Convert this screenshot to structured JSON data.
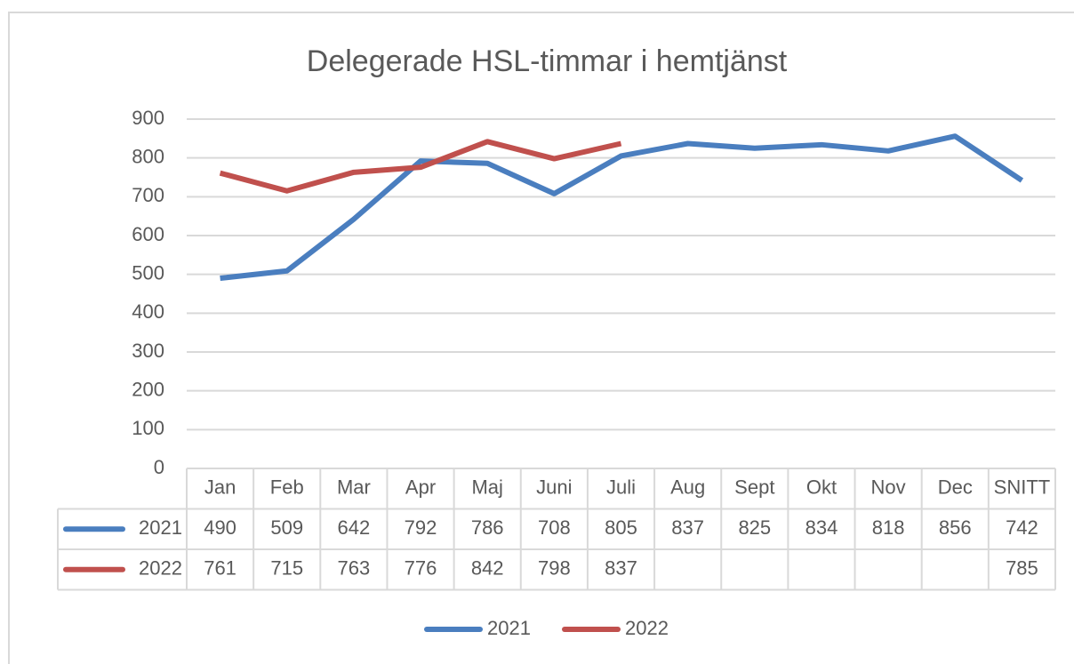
{
  "chart_data": {
    "type": "line",
    "title": "Delegerade HSL-timmar i hemtjänst",
    "categories": [
      "Jan",
      "Feb",
      "Mar",
      "Apr",
      "Maj",
      "Juni",
      "Juli",
      "Aug",
      "Sept",
      "Okt",
      "Nov",
      "Dec",
      "SNITT"
    ],
    "series": [
      {
        "name": "2021",
        "color": "#4a7ebf",
        "values": [
          490,
          509,
          642,
          792,
          786,
          708,
          805,
          837,
          825,
          834,
          818,
          856,
          742
        ]
      },
      {
        "name": "2022",
        "color": "#c0504d",
        "values": [
          761,
          715,
          763,
          776,
          842,
          798,
          837,
          null,
          null,
          null,
          null,
          null,
          785
        ]
      }
    ],
    "ylim": [
      0,
      900
    ],
    "yticks": [
      0,
      100,
      200,
      300,
      400,
      500,
      600,
      700,
      800,
      900
    ],
    "grid": true,
    "legend": "bottom"
  }
}
